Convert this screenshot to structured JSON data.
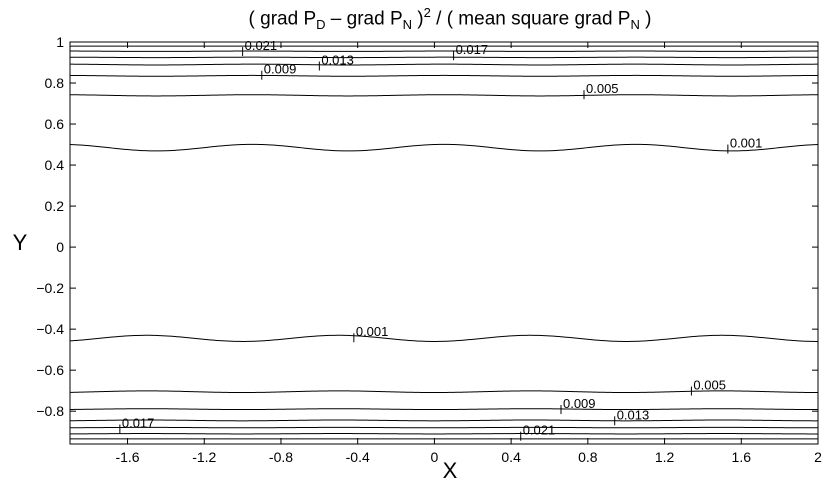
{
  "chart_data": {
    "type": "contour",
    "title": {
      "p1": "( grad P",
      "s1": "D",
      "p2": " – grad P",
      "s2": "N",
      "p3": " )",
      "sup": "2",
      "p4": "  /  ( mean square  grad P",
      "s3": "N",
      "p5": " )"
    },
    "xlabel": "X",
    "ylabel": "Y",
    "xlim": [
      -1.9,
      2.0
    ],
    "ylim": [
      -0.96,
      1.0
    ],
    "xticks": [
      -1.6,
      -1.2,
      -0.8,
      -0.4,
      0,
      0.4,
      0.8,
      1.2,
      1.6,
      2
    ],
    "xtick_labels": [
      "-1.6",
      "-1.2",
      "-0.8",
      "-0.4",
      "0",
      "0.4",
      "0.8",
      "1.2",
      "1.6",
      "2"
    ],
    "yticks": [
      -0.8,
      -0.6,
      -0.4,
      -0.2,
      0,
      0.2,
      0.4,
      0.6,
      0.8,
      1
    ],
    "ytick_labels": [
      "−0.8",
      "−0.6",
      "−0.4",
      "−0.2",
      "0",
      "0.2",
      "0.4",
      "0.6",
      "0.8",
      "1"
    ],
    "wave_period": 1.0,
    "contours": [
      {
        "level": "0.001",
        "y": 0.485,
        "amp": 0.016,
        "phase": 0.05
      },
      {
        "level": "0.005",
        "y": 0.74,
        "amp": 0.003,
        "phase": 0.05
      },
      {
        "level": "0.009",
        "y": 0.835,
        "amp": 0.002,
        "phase": 0.05
      },
      {
        "level": "0.013",
        "y": 0.89,
        "amp": 0.002,
        "phase": 0.05
      },
      {
        "level": "0.017",
        "y": 0.925,
        "amp": 0.001,
        "phase": 0.05
      },
      {
        "level": "0.021",
        "y": 0.955,
        "amp": 0.001,
        "phase": 0.05
      },
      {
        "level": "",
        "y": 0.98,
        "amp": 0.0,
        "phase": 0.05
      },
      {
        "level": "0.001",
        "y": -0.445,
        "amp": 0.015,
        "phase": 0.5
      },
      {
        "level": "0.005",
        "y": -0.705,
        "amp": 0.004,
        "phase": 0.5
      },
      {
        "level": "0.009",
        "y": -0.79,
        "amp": 0.002,
        "phase": 0.5
      },
      {
        "level": "0.013",
        "y": -0.845,
        "amp": 0.002,
        "phase": 0.5
      },
      {
        "level": "0.017",
        "y": -0.88,
        "amp": 0.001,
        "phase": 0.5
      },
      {
        "level": "0.021",
        "y": -0.91,
        "amp": 0.001,
        "phase": 0.5
      },
      {
        "level": "",
        "y": -0.935,
        "amp": 0.0,
        "phase": 0.5
      }
    ],
    "contour_labels": [
      {
        "text": "0.021",
        "x": -1.0,
        "y": 0.975
      },
      {
        "text": "0.017",
        "x": 0.1,
        "y": 0.955
      },
      {
        "text": "0.013",
        "x": -0.6,
        "y": 0.905
      },
      {
        "text": "0.009",
        "x": -0.9,
        "y": 0.86
      },
      {
        "text": "0.005",
        "x": 0.78,
        "y": 0.765
      },
      {
        "text": "0.001",
        "x": 1.53,
        "y": 0.5
      },
      {
        "text": "0.001",
        "x": -0.42,
        "y": -0.42
      },
      {
        "text": "0.005",
        "x": 1.34,
        "y": -0.68
      },
      {
        "text": "0.009",
        "x": 0.66,
        "y": -0.77
      },
      {
        "text": "0.013",
        "x": 0.94,
        "y": -0.825
      },
      {
        "text": "0.017",
        "x": -1.64,
        "y": -0.865
      },
      {
        "text": "0.021",
        "x": 0.45,
        "y": -0.9
      }
    ],
    "grid": false
  }
}
